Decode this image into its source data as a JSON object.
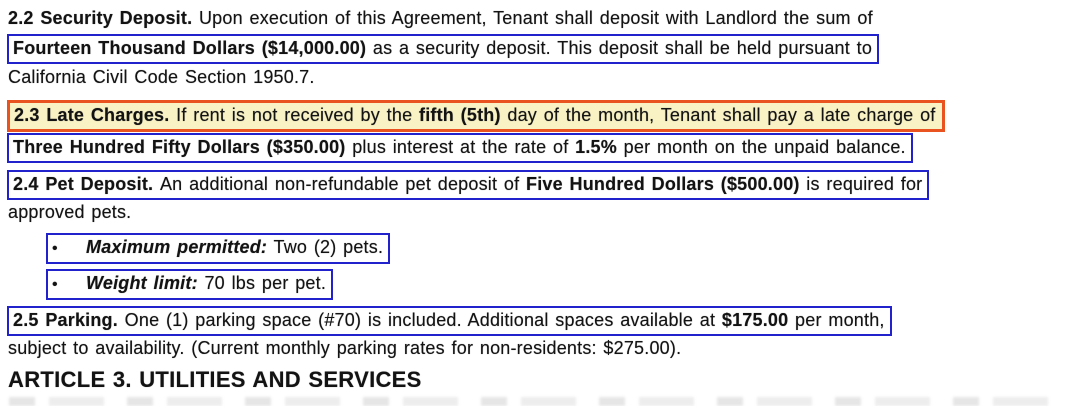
{
  "colors": {
    "box-blue": "#2222cc",
    "box-red": "#e8531f",
    "highlight-yellow": "#f9f2c5",
    "ink": "#131313"
  },
  "document": {
    "bullet_glyph": "•",
    "lines": {
      "l1": {
        "segments": [
          {
            "t": "2.2 Security Deposit. ",
            "s": "b"
          },
          {
            "t": "Upon execution of this Agreement, Tenant shall deposit with Landlord the sum of"
          }
        ]
      },
      "l2": {
        "segments": [
          {
            "t": "Fourteen Thousand Dollars ($14,000.00)",
            "s": "b"
          },
          {
            "t": " as a security deposit. This deposit shall be held pursuant to"
          }
        ]
      },
      "l3": {
        "segments": [
          {
            "t": "California Civil Code Section 1950.7."
          }
        ]
      },
      "l4": {
        "segments": [
          {
            "t": "2.3 Late Charges. ",
            "s": "b"
          },
          {
            "t": "If rent is not received by the "
          },
          {
            "t": "fifth (5th)",
            "s": "b"
          },
          {
            "t": " day of the month, Tenant shall pay a late charge of"
          }
        ]
      },
      "l5": {
        "segments": [
          {
            "t": "Three Hundred Fifty Dollars ($350.00)",
            "s": "b"
          },
          {
            "t": " plus interest at the rate of "
          },
          {
            "t": "1.5%",
            "s": "b"
          },
          {
            "t": " per month on the unpaid balance."
          }
        ]
      },
      "l6": {
        "segments": [
          {
            "t": "2.4 Pet Deposit. ",
            "s": "b"
          },
          {
            "t": "An additional non-refundable pet deposit of "
          },
          {
            "t": "Five Hundred Dollars ($500.00)",
            "s": "b"
          },
          {
            "t": " is required for"
          }
        ]
      },
      "l7": {
        "segments": [
          {
            "t": "approved pets."
          }
        ]
      },
      "b1": {
        "segments": [
          {
            "t": "Maximum permitted:",
            "s": "bi"
          },
          {
            "t": " Two (2) pets."
          }
        ]
      },
      "b2": {
        "segments": [
          {
            "t": "Weight limit:",
            "s": "bi"
          },
          {
            "t": " 70 lbs per pet."
          }
        ]
      },
      "l8": {
        "segments": [
          {
            "t": "2.5 Parking. ",
            "s": "b"
          },
          {
            "t": "One (1) parking space (#70) is included. Additional spaces available at "
          },
          {
            "t": "$175.00",
            "s": "b"
          },
          {
            "t": " per month,"
          }
        ]
      },
      "l9": {
        "segments": [
          {
            "t": "subject to availability. (Current monthly parking rates for non-residents: $275.00)."
          }
        ]
      }
    },
    "article_heading": "ARTICLE 3. UTILITIES AND SERVICES"
  }
}
